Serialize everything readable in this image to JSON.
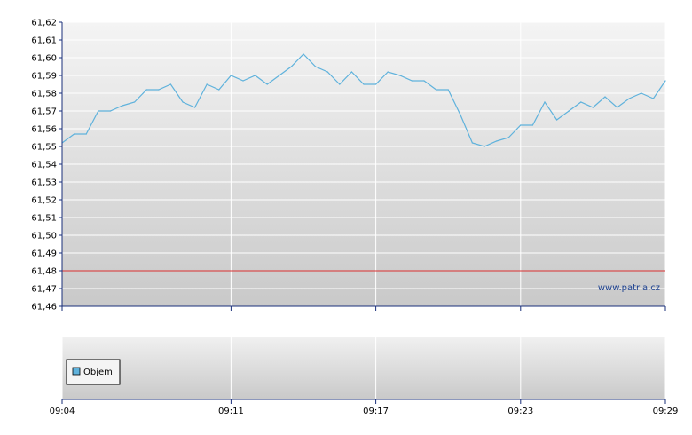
{
  "chart_data": [
    {
      "type": "line",
      "panel": "price",
      "ylim": [
        61.46,
        61.62
      ],
      "y_ticks": [
        "61,46",
        "61,47",
        "61,48",
        "61,49",
        "61,50",
        "61,51",
        "61,52",
        "61,53",
        "61,54",
        "61,55",
        "61,56",
        "61,57",
        "61,58",
        "61,59",
        "61,60",
        "61,61",
        "61,62"
      ],
      "x_tick_labels": [
        "09:04",
        "09:11",
        "09:17",
        "09:23",
        "09:29"
      ],
      "grid": true,
      "reference_line": {
        "value": 61.48,
        "color": "#d93030"
      },
      "series": [
        {
          "color": "#5fb2dc",
          "x": [
            "09:04",
            "09:04",
            "09:05",
            "09:05",
            "09:06",
            "09:06",
            "09:07",
            "09:07",
            "09:08",
            "09:08",
            "09:09",
            "09:09",
            "09:10",
            "09:10",
            "09:11",
            "09:11",
            "09:12",
            "09:12",
            "09:13",
            "09:13",
            "09:14",
            "09:14",
            "09:15",
            "09:15",
            "09:16",
            "09:16",
            "09:17",
            "09:17",
            "09:18",
            "09:18",
            "09:19",
            "09:19",
            "09:20",
            "09:20",
            "09:21",
            "09:21",
            "09:22",
            "09:22",
            "09:23",
            "09:23",
            "09:24",
            "09:24",
            "09:25",
            "09:25",
            "09:26",
            "09:26",
            "09:27",
            "09:27",
            "09:28",
            "09:28",
            "09:29"
          ],
          "values": [
            61.552,
            61.557,
            61.557,
            61.57,
            61.57,
            61.573,
            61.575,
            61.582,
            61.582,
            61.585,
            61.575,
            61.572,
            61.585,
            61.582,
            61.59,
            61.587,
            61.59,
            61.585,
            61.59,
            61.595,
            61.602,
            61.595,
            61.592,
            61.585,
            61.592,
            61.585,
            61.585,
            61.592,
            61.59,
            61.587,
            61.587,
            61.582,
            61.582,
            61.568,
            61.552,
            61.55,
            61.553,
            61.555,
            61.562,
            61.562,
            61.575,
            61.565,
            61.57,
            61.575,
            61.572,
            61.578,
            61.572,
            61.577,
            61.58,
            61.577,
            61.587
          ]
        }
      ]
    },
    {
      "type": "bar",
      "panel": "volume",
      "x_tick_labels": [
        "09:04",
        "09:11",
        "09:17",
        "09:23",
        "09:29"
      ],
      "grid": true,
      "legend": {
        "position": "left",
        "entries": [
          {
            "label": "Objem",
            "color": "#5fb2dc"
          }
        ]
      },
      "series": [
        {
          "name": "Objem",
          "values": []
        }
      ]
    }
  ],
  "watermark": "www.patria.cz"
}
